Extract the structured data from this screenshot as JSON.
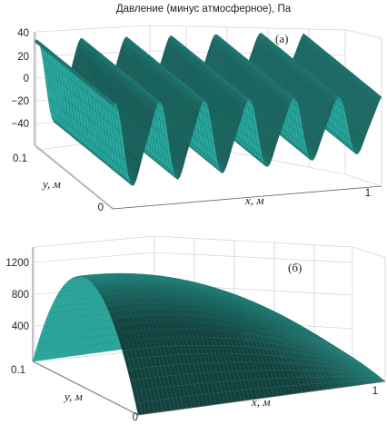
{
  "title": "Давление (минус атмосферное), Па",
  "chart_data": [
    {
      "type": "surface",
      "panel_label": "(а)",
      "xlabel": "x, м",
      "ylabel": "y, м",
      "x_ticks": [
        "0",
        "1"
      ],
      "y_ticks": [
        "0",
        "0.1"
      ],
      "z_ticks": [
        "40",
        "20",
        "0",
        "−20",
        "−40"
      ],
      "xlim": [
        0,
        1
      ],
      "ylim": [
        0,
        0.1
      ],
      "zlim": [
        -50,
        40
      ],
      "wave_count": 6,
      "amplitude": 40,
      "grid": true,
      "surface_color": "#2e9a92"
    },
    {
      "type": "surface",
      "panel_label": "(б)",
      "xlabel": "x, м",
      "ylabel": "y, м",
      "x_ticks": [
        "0",
        "1"
      ],
      "y_ticks": [
        "0",
        "0.1"
      ],
      "z_ticks": [
        "1200",
        "800",
        "400"
      ],
      "xlim": [
        0,
        1
      ],
      "ylim": [
        0,
        0.1
      ],
      "zlim": [
        0,
        1400
      ],
      "peak": 1350,
      "grid": true,
      "surface_color": "#2e9a92"
    }
  ]
}
